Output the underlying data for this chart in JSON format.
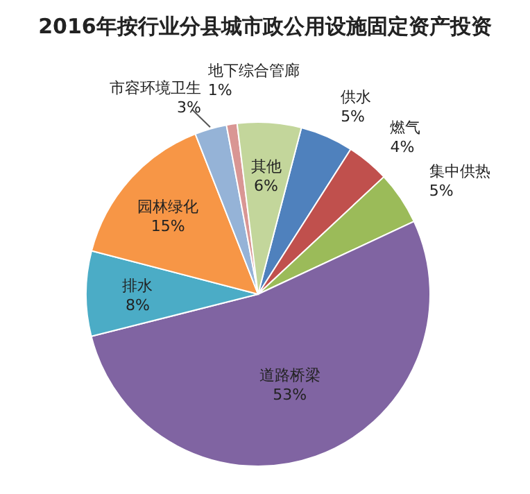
{
  "chart_data": {
    "type": "pie",
    "title": "2016年按行业分县城市政公用设施固定资产投资",
    "categories": [
      "供水",
      "燃气",
      "集中供热",
      "道路桥梁",
      "排水",
      "园林绿化",
      "市容环境卫生",
      "地下综合管廊",
      "其他"
    ],
    "values": [
      5,
      4,
      5,
      53,
      8,
      15,
      3,
      1,
      6
    ],
    "colors": [
      "#4f81bd",
      "#c0504d",
      "#9bbb59",
      "#8064a2",
      "#4bacc6",
      "#f79646",
      "#95b3d7",
      "#d99694",
      "#c3d69b"
    ],
    "value_labels": [
      "5%",
      "4%",
      "5%",
      "53%",
      "8%",
      "15%",
      "3%",
      "1%",
      "6%"
    ]
  }
}
